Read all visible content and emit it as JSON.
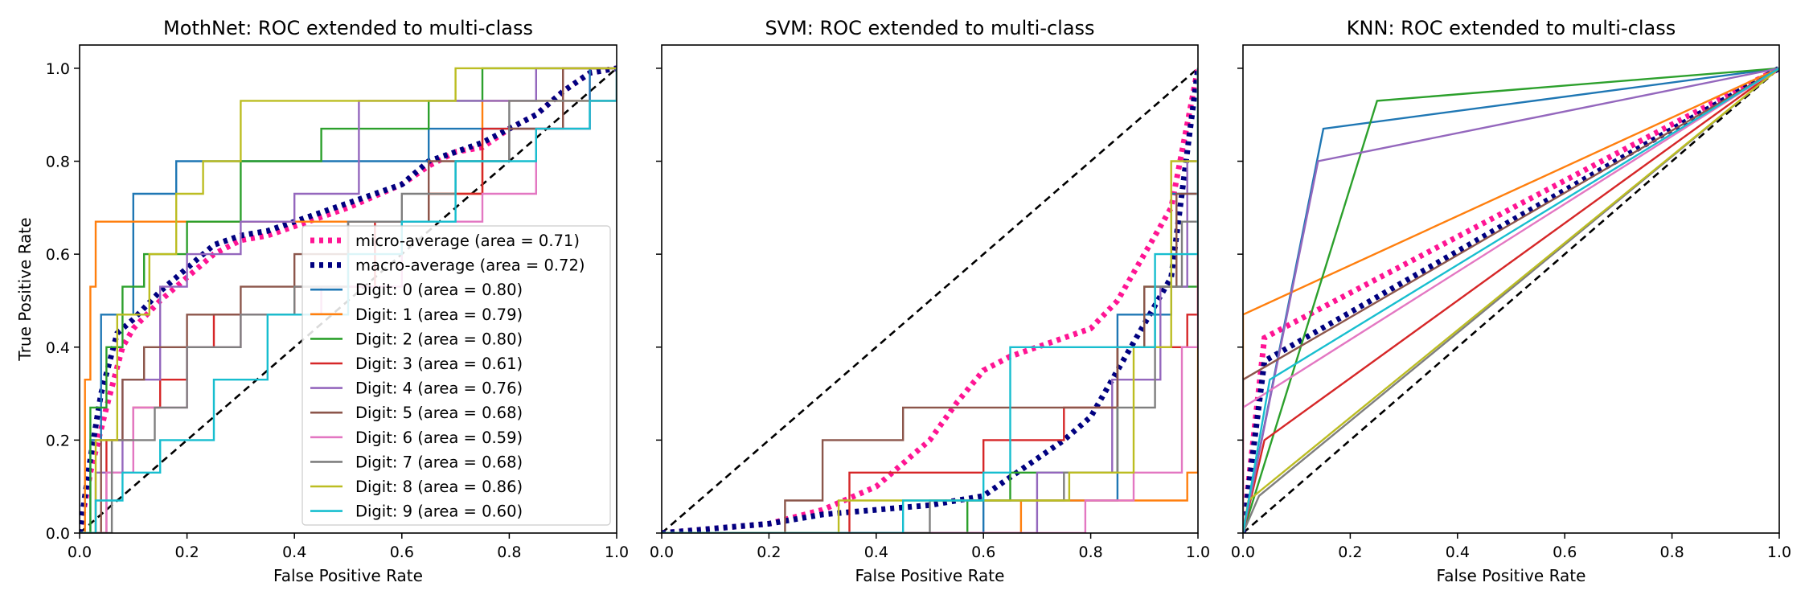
{
  "chart_data": [
    {
      "type": "line",
      "title": "MothNet: ROC extended to multi-class",
      "xlabel": "False Positive Rate",
      "ylabel": "True Positive Rate",
      "xlim": [
        0.0,
        1.0
      ],
      "ylim": [
        0.0,
        1.05
      ],
      "xticks": [
        "0.0",
        "0.2",
        "0.4",
        "0.6",
        "0.8",
        "1.0"
      ],
      "yticks": [
        "0.0",
        "0.2",
        "0.4",
        "0.6",
        "0.8",
        "1.0"
      ],
      "grid": false,
      "legend_position": "lower-right",
      "chance_line": [
        [
          0,
          0
        ],
        [
          1,
          1
        ]
      ],
      "series": [
        {
          "name": "micro-average (area = 0.71)",
          "color": "#ff1493",
          "style": "dotted",
          "x": [
            0,
            0.02,
            0.05,
            0.08,
            0.1,
            0.15,
            0.2,
            0.25,
            0.3,
            0.35,
            0.4,
            0.5,
            0.6,
            0.65,
            0.7,
            0.75,
            0.8,
            0.85,
            0.9,
            0.95,
            1.0
          ],
          "y": [
            0,
            0.13,
            0.27,
            0.4,
            0.44,
            0.5,
            0.55,
            0.6,
            0.63,
            0.64,
            0.66,
            0.7,
            0.75,
            0.79,
            0.82,
            0.83,
            0.87,
            0.9,
            0.95,
            0.99,
            1.0
          ]
        },
        {
          "name": "macro-average (area = 0.72)",
          "color": "#000080",
          "style": "dotted",
          "x": [
            0,
            0.02,
            0.04,
            0.07,
            0.1,
            0.15,
            0.2,
            0.25,
            0.3,
            0.35,
            0.4,
            0.5,
            0.6,
            0.65,
            0.7,
            0.75,
            0.8,
            0.85,
            0.9,
            0.95,
            1.0
          ],
          "y": [
            0,
            0.16,
            0.3,
            0.43,
            0.46,
            0.52,
            0.57,
            0.62,
            0.64,
            0.65,
            0.67,
            0.71,
            0.75,
            0.8,
            0.82,
            0.84,
            0.87,
            0.9,
            0.95,
            0.99,
            1.0
          ]
        },
        {
          "name": "Digit: 0 (area = 0.80)",
          "color": "#1f77b4",
          "style": "step",
          "x": [
            0,
            0.02,
            0.04,
            0.06,
            0.1,
            0.15,
            0.18,
            0.6,
            0.65,
            0.9,
            0.95,
            1.0
          ],
          "y": [
            0,
            0.2,
            0.47,
            0.47,
            0.73,
            0.73,
            0.8,
            0.8,
            0.87,
            0.87,
            1.0,
            1.0
          ]
        },
        {
          "name": "Digit: 1 (area = 0.79)",
          "color": "#ff7f0e",
          "style": "step",
          "x": [
            0,
            0.01,
            0.02,
            0.03,
            0.35,
            0.65,
            0.75,
            1.0
          ],
          "y": [
            0,
            0.33,
            0.53,
            0.67,
            0.67,
            0.73,
            0.93,
            1.0
          ]
        },
        {
          "name": "Digit: 2 (area = 0.80)",
          "color": "#2ca02c",
          "style": "step",
          "x": [
            0,
            0.02,
            0.05,
            0.08,
            0.12,
            0.2,
            0.3,
            0.45,
            0.65,
            0.75,
            1.0
          ],
          "y": [
            0,
            0.27,
            0.4,
            0.53,
            0.6,
            0.67,
            0.8,
            0.87,
            0.93,
            1.0,
            1.0
          ]
        },
        {
          "name": "Digit: 3 (area = 0.61)",
          "color": "#d62728",
          "style": "step",
          "x": [
            0,
            0.05,
            0.1,
            0.15,
            0.2,
            0.25,
            0.35,
            0.4,
            0.55,
            0.65,
            0.75,
            0.9,
            1.0
          ],
          "y": [
            0,
            0.2,
            0.27,
            0.33,
            0.4,
            0.47,
            0.47,
            0.53,
            0.67,
            0.73,
            0.87,
            1.0,
            1.0
          ]
        },
        {
          "name": "Digit: 4 (area = 0.76)",
          "color": "#9467bd",
          "style": "step",
          "x": [
            0,
            0.03,
            0.08,
            0.15,
            0.2,
            0.3,
            0.4,
            0.52,
            0.6,
            0.7,
            0.85,
            1.0
          ],
          "y": [
            0,
            0.13,
            0.33,
            0.53,
            0.6,
            0.67,
            0.73,
            0.93,
            0.93,
            0.93,
            1.0,
            1.0
          ]
        },
        {
          "name": "Digit: 5 (area = 0.68)",
          "color": "#8c564b",
          "style": "step",
          "x": [
            0,
            0.04,
            0.08,
            0.12,
            0.2,
            0.3,
            0.4,
            0.5,
            0.65,
            0.8,
            0.9,
            1.0
          ],
          "y": [
            0,
            0.2,
            0.33,
            0.4,
            0.47,
            0.53,
            0.6,
            0.67,
            0.8,
            0.87,
            1.0,
            1.0
          ]
        },
        {
          "name": "Digit: 6 (area = 0.59)",
          "color": "#e377c2",
          "style": "step",
          "x": [
            0,
            0.05,
            0.1,
            0.2,
            0.3,
            0.45,
            0.6,
            0.75,
            0.85,
            0.95,
            1.0
          ],
          "y": [
            0,
            0.13,
            0.27,
            0.4,
            0.47,
            0.53,
            0.67,
            0.73,
            0.87,
            0.93,
            1.0
          ]
        },
        {
          "name": "Digit: 7 (area = 0.68)",
          "color": "#7f7f7f",
          "style": "step",
          "x": [
            0,
            0.06,
            0.14,
            0.2,
            0.3,
            0.4,
            0.5,
            0.6,
            0.7,
            0.8,
            0.9,
            1.0
          ],
          "y": [
            0,
            0.2,
            0.27,
            0.4,
            0.47,
            0.53,
            0.67,
            0.73,
            0.8,
            0.93,
            0.93,
            1.0
          ]
        },
        {
          "name": "Digit: 8 (area = 0.86)",
          "color": "#bcbd22",
          "style": "step",
          "x": [
            0,
            0.03,
            0.07,
            0.13,
            0.18,
            0.23,
            0.3,
            0.35,
            0.45,
            0.6,
            0.7,
            1.0
          ],
          "y": [
            0,
            0.2,
            0.47,
            0.6,
            0.73,
            0.8,
            0.93,
            0.93,
            0.93,
            0.93,
            1.0,
            1.0
          ]
        },
        {
          "name": "Digit: 9 (area = 0.60)",
          "color": "#17becf",
          "style": "step",
          "x": [
            0,
            0.03,
            0.08,
            0.15,
            0.25,
            0.35,
            0.5,
            0.6,
            0.7,
            0.85,
            0.95,
            1.0
          ],
          "y": [
            0,
            0.07,
            0.13,
            0.2,
            0.33,
            0.47,
            0.6,
            0.67,
            0.8,
            0.87,
            0.93,
            1.0
          ]
        }
      ]
    },
    {
      "type": "line",
      "title": "SVM: ROC extended to multi-class",
      "xlabel": "False Positive Rate",
      "xlim": [
        0.0,
        1.0
      ],
      "ylim": [
        0.0,
        1.05
      ],
      "xticks": [
        "0.0",
        "0.2",
        "0.4",
        "0.6",
        "0.8",
        "1.0"
      ],
      "grid": false,
      "chance_line": [
        [
          0,
          0
        ],
        [
          1,
          1
        ]
      ],
      "series": [
        {
          "color": "#ff1493",
          "style": "dotted",
          "x": [
            0,
            0.1,
            0.2,
            0.3,
            0.4,
            0.45,
            0.5,
            0.55,
            0.6,
            0.65,
            0.7,
            0.75,
            0.8,
            0.85,
            0.9,
            0.95,
            1.0
          ],
          "y": [
            0,
            0.01,
            0.02,
            0.05,
            0.1,
            0.15,
            0.2,
            0.28,
            0.35,
            0.38,
            0.4,
            0.42,
            0.44,
            0.5,
            0.6,
            0.7,
            1.0
          ]
        },
        {
          "color": "#000080",
          "style": "dotted",
          "x": [
            0,
            0.1,
            0.2,
            0.3,
            0.4,
            0.5,
            0.6,
            0.65,
            0.7,
            0.75,
            0.8,
            0.85,
            0.9,
            0.95,
            1.0
          ],
          "y": [
            0,
            0.01,
            0.02,
            0.04,
            0.05,
            0.06,
            0.08,
            0.12,
            0.16,
            0.2,
            0.25,
            0.35,
            0.45,
            0.55,
            1.0
          ]
        },
        {
          "color": "#1f77b4",
          "style": "step",
          "x": [
            0,
            0.6,
            0.85,
            0.95,
            1.0
          ],
          "y": [
            0,
            0.07,
            0.47,
            0.73,
            1.0
          ]
        },
        {
          "color": "#ff7f0e",
          "style": "step",
          "x": [
            0,
            0.67,
            0.98,
            1.0
          ],
          "y": [
            0,
            0.07,
            0.13,
            1.0
          ]
        },
        {
          "color": "#2ca02c",
          "style": "step",
          "x": [
            0,
            0.57,
            0.65,
            0.85,
            0.9,
            1.0
          ],
          "y": [
            0,
            0.07,
            0.13,
            0.4,
            0.53,
            1.0
          ]
        },
        {
          "color": "#d62728",
          "style": "step",
          "x": [
            0,
            0.35,
            0.6,
            0.75,
            0.85,
            0.98,
            1.0
          ],
          "y": [
            0,
            0.13,
            0.2,
            0.27,
            0.4,
            0.47,
            1.0
          ]
        },
        {
          "color": "#9467bd",
          "style": "step",
          "x": [
            0,
            0.7,
            0.84,
            0.93,
            0.98,
            1.0
          ],
          "y": [
            0,
            0.13,
            0.33,
            0.53,
            0.8,
            1.0
          ]
        },
        {
          "color": "#8c564b",
          "style": "step",
          "x": [
            0,
            0.23,
            0.3,
            0.45,
            0.75,
            0.85,
            0.9,
            0.96,
            1.0
          ],
          "y": [
            0,
            0.07,
            0.2,
            0.27,
            0.27,
            0.4,
            0.53,
            0.73,
            1.0
          ]
        },
        {
          "color": "#e377c2",
          "style": "step",
          "x": [
            0,
            0.79,
            0.88,
            0.97,
            1.0
          ],
          "y": [
            0,
            0.07,
            0.13,
            0.4,
            1.0
          ]
        },
        {
          "color": "#7f7f7f",
          "style": "step",
          "x": [
            0,
            0.5,
            0.75,
            0.85,
            0.92,
            0.97,
            1.0
          ],
          "y": [
            0,
            0.07,
            0.13,
            0.27,
            0.53,
            0.67,
            1.0
          ]
        },
        {
          "color": "#bcbd22",
          "style": "step",
          "x": [
            0,
            0.33,
            0.76,
            0.88,
            0.95,
            1.0
          ],
          "y": [
            0,
            0.07,
            0.13,
            0.4,
            0.8,
            1.0
          ]
        },
        {
          "color": "#17becf",
          "style": "step",
          "x": [
            0,
            0.45,
            0.6,
            0.65,
            0.8,
            0.92,
            1.0
          ],
          "y": [
            0,
            0.07,
            0.13,
            0.4,
            0.4,
            0.6,
            1.0
          ]
        }
      ]
    },
    {
      "type": "line",
      "title": "KNN: ROC extended to multi-class",
      "xlabel": "False Positive Rate",
      "xlim": [
        0.0,
        1.0
      ],
      "ylim": [
        0.0,
        1.05
      ],
      "xticks": [
        "0.0",
        "0.2",
        "0.4",
        "0.6",
        "0.8",
        "1.0"
      ],
      "grid": false,
      "chance_line": [
        [
          0,
          0
        ],
        [
          1,
          1
        ]
      ],
      "series": [
        {
          "color": "#ff1493",
          "style": "dotted",
          "x": [
            0,
            0.04,
            1.0
          ],
          "y": [
            0,
            0.42,
            1.0
          ]
        },
        {
          "color": "#000080",
          "style": "dotted",
          "x": [
            0,
            0.04,
            1.0
          ],
          "y": [
            0,
            0.37,
            1.0
          ]
        },
        {
          "color": "#1f77b4",
          "style": "line",
          "x": [
            0,
            0.15,
            1.0
          ],
          "y": [
            0,
            0.87,
            1.0
          ]
        },
        {
          "color": "#ff7f0e",
          "style": "line",
          "x": [
            0,
            0,
            1.0
          ],
          "y": [
            0,
            0.47,
            1.0
          ]
        },
        {
          "color": "#2ca02c",
          "style": "line",
          "x": [
            0,
            0.25,
            1.0
          ],
          "y": [
            0,
            0.93,
            1.0
          ]
        },
        {
          "color": "#d62728",
          "style": "line",
          "x": [
            0,
            0.04,
            1.0
          ],
          "y": [
            0,
            0.2,
            1.0
          ]
        },
        {
          "color": "#9467bd",
          "style": "line",
          "x": [
            0,
            0.14,
            1.0
          ],
          "y": [
            0,
            0.8,
            1.0
          ]
        },
        {
          "color": "#8c564b",
          "style": "line",
          "x": [
            0,
            0,
            1.0
          ],
          "y": [
            0,
            0.33,
            1.0
          ]
        },
        {
          "color": "#e377c2",
          "style": "line",
          "x": [
            0,
            0,
            1.0
          ],
          "y": [
            0,
            0.27,
            1.0
          ]
        },
        {
          "color": "#7f7f7f",
          "style": "line",
          "x": [
            0,
            0.03,
            1.0
          ],
          "y": [
            0,
            0.08,
            1.0
          ]
        },
        {
          "color": "#bcbd22",
          "style": "line",
          "x": [
            0,
            0.01,
            1.0
          ],
          "y": [
            0,
            0.07,
            1.0
          ]
        },
        {
          "color": "#17becf",
          "style": "line",
          "x": [
            0,
            0.05,
            1.0
          ],
          "y": [
            0,
            0.33,
            1.0
          ]
        }
      ]
    }
  ]
}
